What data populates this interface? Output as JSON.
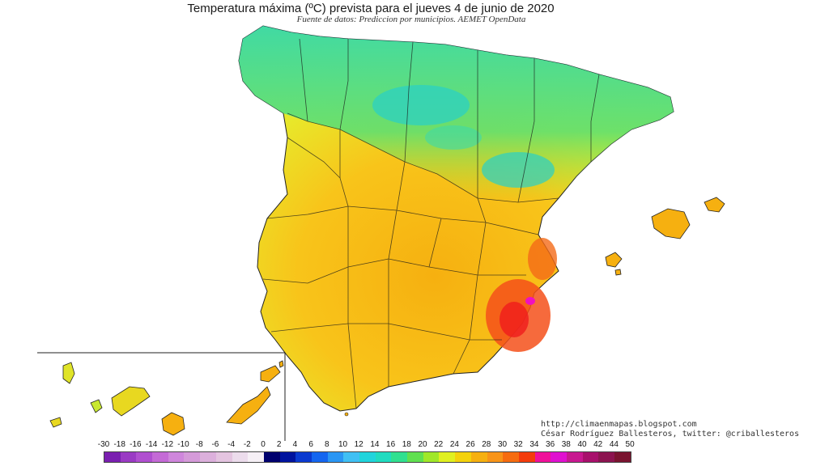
{
  "title": "Temperatura máxima (ºC) prevista para el jueves 4 de junio de 2020",
  "subtitle": "Fuente de datos: Prediccion por municipios. AEMET OpenData",
  "credits": {
    "blog": "http://climaenmapas.blogspot.com",
    "author": "César Rodríguez Ballesteros, twitter: @criballesteros"
  },
  "legend": {
    "labels": [
      "-30",
      "-18",
      "-16",
      "-14",
      "-12",
      "-10",
      "-8",
      "-6",
      "-4",
      "-2",
      "0",
      "2",
      "4",
      "6",
      "8",
      "10",
      "12",
      "14",
      "16",
      "18",
      "20",
      "22",
      "24",
      "26",
      "28",
      "30",
      "32",
      "34",
      "36",
      "38",
      "40",
      "42",
      "44",
      "50"
    ],
    "colors": [
      "#7a1fb0",
      "#9a3ac4",
      "#b04fd0",
      "#c46ad6",
      "#cf86dc",
      "#d59ad9",
      "#dcb0dc",
      "#e4c4e0",
      "#ecdcec",
      "#f6f0f6",
      "#00006e",
      "#00139e",
      "#0a3ad0",
      "#1466f0",
      "#2a96f4",
      "#40c0f4",
      "#20d4dc",
      "#20dcc0",
      "#30e090",
      "#60e050",
      "#a0e828",
      "#e0f020",
      "#f4d20c",
      "#f6b010",
      "#f89418",
      "#f66c10",
      "#f43c0c",
      "#f0109a",
      "#e010d0",
      "#c81890",
      "#a8106c",
      "#8c1450",
      "#7a1430"
    ]
  }
}
